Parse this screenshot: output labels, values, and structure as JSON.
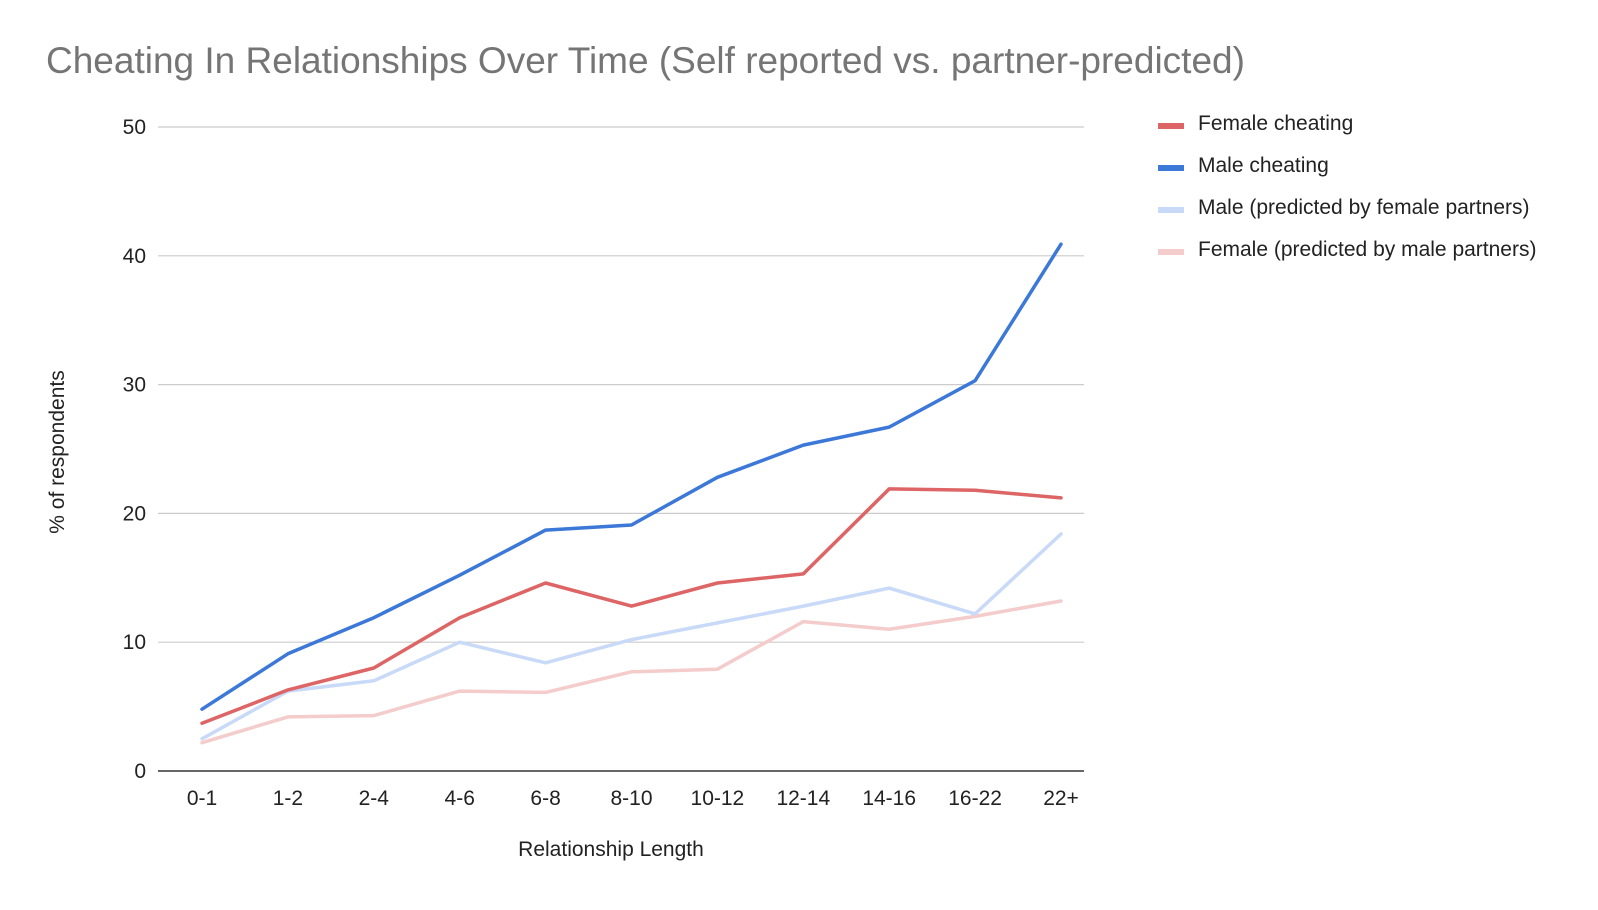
{
  "chart_data": {
    "type": "line",
    "title": "Cheating In Relationships Over Time (Self reported vs. partner-predicted)",
    "xlabel": "Relationship Length",
    "ylabel": "% of respondents",
    "categories": [
      "0-1",
      "1-2",
      "2-4",
      "4-6",
      "6-8",
      "8-10",
      "10-12",
      "12-14",
      "14-16",
      "16-22",
      "22+"
    ],
    "ylim": [
      0,
      50
    ],
    "yticks": [
      0,
      10,
      20,
      30,
      40,
      50
    ],
    "grid": true,
    "legend_position": "right",
    "series": [
      {
        "name": "Female cheating",
        "color": "#dd6565",
        "width": 3.5,
        "values": [
          3.7,
          6.3,
          8.0,
          11.9,
          14.6,
          12.8,
          14.6,
          15.3,
          21.9,
          21.8,
          21.2
        ]
      },
      {
        "name": "Male cheating",
        "color": "#3b78d8",
        "width": 3.5,
        "values": [
          4.8,
          9.1,
          11.9,
          15.2,
          18.7,
          19.1,
          22.8,
          25.3,
          26.7,
          30.3,
          40.9
        ]
      },
      {
        "name": "Male (predicted by female partners)",
        "color": "#c9daf8",
        "width": 3.5,
        "values": [
          2.5,
          6.2,
          7.0,
          10.0,
          8.4,
          10.2,
          11.5,
          12.8,
          14.2,
          12.2,
          18.4
        ]
      },
      {
        "name": "Female (predicted by male partners)",
        "color": "#f4cccc",
        "width": 3.5,
        "values": [
          2.2,
          4.2,
          4.3,
          6.2,
          6.1,
          7.7,
          7.9,
          11.6,
          11.0,
          12.0,
          13.2
        ]
      }
    ]
  }
}
